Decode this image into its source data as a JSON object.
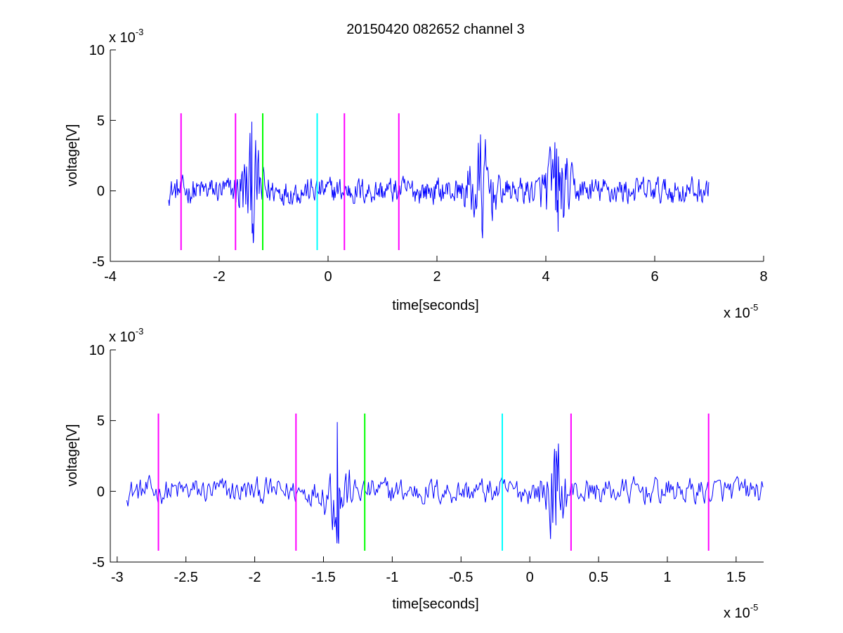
{
  "title": "20150420 082652 channel 3",
  "chart_data": [
    {
      "type": "line",
      "xlabel": "time[seconds]",
      "ylabel": "voltage[V]",
      "x_multiplier": "x 10",
      "x_multiplier_exp": "-5",
      "y_multiplier": "x 10",
      "y_multiplier_exp": "-3",
      "xlim": [
        -4,
        8
      ],
      "ylim": [
        -5,
        10
      ],
      "x_ticks": [
        "-4",
        "-2",
        "0",
        "2",
        "4",
        "6",
        "8"
      ],
      "y_ticks": [
        "-5",
        "0",
        "5",
        "10"
      ],
      "grid": false,
      "signal": {
        "color": "#0000ff",
        "x_range": [
          -2.93,
          7.0
        ],
        "bursts": [
          {
            "x": -1.4,
            "y_max": 4.9,
            "y_min": -3.7
          },
          {
            "x": 2.8,
            "y_max": 4.0,
            "y_min": -2.7
          },
          {
            "x": 4.2,
            "y_max": 3.0,
            "y_min": -2.9
          }
        ]
      },
      "markers": [
        {
          "x": -2.7,
          "color": "#ff00ff"
        },
        {
          "x": -1.7,
          "color": "#ff00ff"
        },
        {
          "x": -1.2,
          "color": "#00ff00"
        },
        {
          "x": -0.2,
          "color": "#00ffff"
        },
        {
          "x": 0.3,
          "color": "#ff00ff"
        },
        {
          "x": 1.3,
          "color": "#ff00ff"
        }
      ],
      "marker_range": [
        -4.2,
        5.5
      ]
    },
    {
      "type": "line",
      "xlabel": "time[seconds]",
      "ylabel": "voltage[V]",
      "x_multiplier": "x 10",
      "x_multiplier_exp": "-5",
      "y_multiplier": "x 10",
      "y_multiplier_exp": "-3",
      "xlim": [
        -3.05,
        1.7
      ],
      "ylim": [
        -5,
        10
      ],
      "x_ticks": [
        "-3",
        "-2.5",
        "-2",
        "-1.5",
        "-1",
        "-0.5",
        "0",
        "0.5",
        "1",
        "1.5"
      ],
      "y_ticks": [
        "-5",
        "0",
        "5",
        "10"
      ],
      "grid": false,
      "signal": {
        "color": "#0000ff",
        "x_range": [
          -2.93,
          1.7
        ],
        "bursts": [
          {
            "x": -1.4,
            "y_max": 4.9,
            "y_min": -3.7
          },
          {
            "x": 0.18,
            "y_max": 3.0,
            "y_min": -2.4
          }
        ]
      },
      "markers": [
        {
          "x": -2.7,
          "color": "#ff00ff"
        },
        {
          "x": -1.7,
          "color": "#ff00ff"
        },
        {
          "x": -1.2,
          "color": "#00ff00"
        },
        {
          "x": -0.2,
          "color": "#00ffff"
        },
        {
          "x": 0.3,
          "color": "#ff00ff"
        },
        {
          "x": 1.3,
          "color": "#ff00ff"
        }
      ],
      "marker_range": [
        -4.2,
        5.5
      ]
    }
  ]
}
